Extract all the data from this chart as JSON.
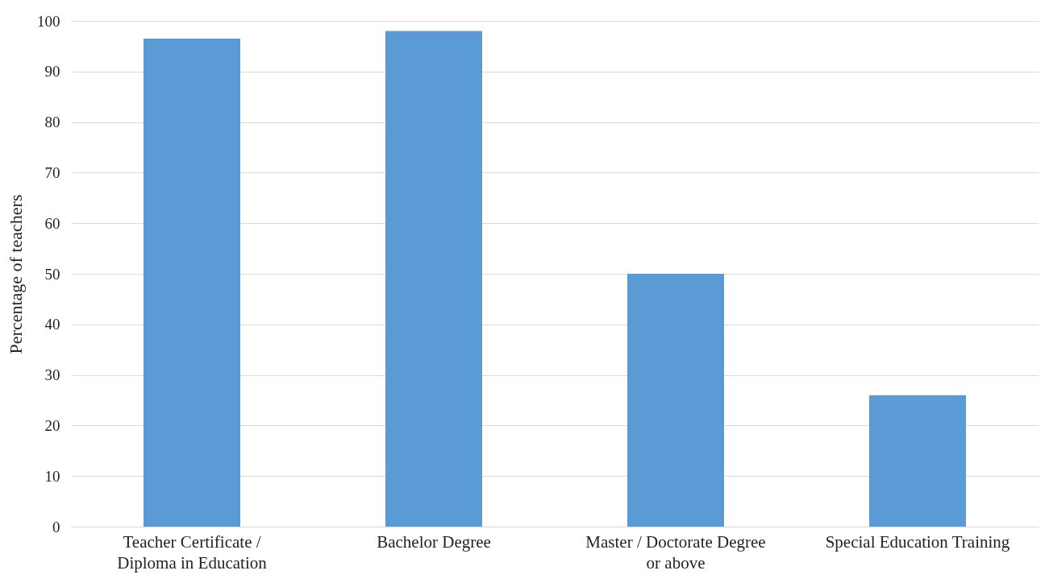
{
  "chart_data": {
    "type": "bar",
    "ylabel": "Percentage of teachers",
    "categories": [
      "Teacher Certificate / Diploma in Education",
      "Bachelor Degree",
      "Master / Doctorate Degree or above",
      "Special Education Training"
    ],
    "values": [
      96.5,
      98,
      50,
      26
    ],
    "color": "#5b9bd5",
    "ylim": [
      0,
      100
    ],
    "yticks": [
      0,
      10,
      20,
      30,
      40,
      50,
      60,
      70,
      80,
      90,
      100
    ],
    "grid": "y"
  }
}
